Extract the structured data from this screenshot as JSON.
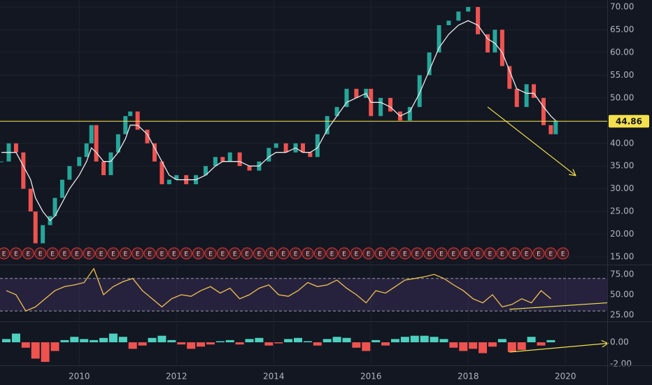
{
  "chart_data": [
    {
      "type": "line",
      "xlim": [
        2008.37,
        2020.86
      ],
      "xticks": [
        2010,
        2012,
        2014,
        2016,
        2018,
        2020
      ],
      "ylim": [
        13.47,
        71.54
      ],
      "yticks": [
        {
          "value": 15,
          "label": "15.00"
        },
        {
          "value": 20,
          "label": "20.00"
        },
        {
          "value": 25,
          "label": "25.00"
        },
        {
          "value": 30,
          "label": "30.00"
        },
        {
          "value": 35,
          "label": "35.00"
        },
        {
          "value": 40,
          "label": "40.00"
        },
        {
          "value": 45,
          "label": "45.00"
        },
        {
          "value": 50,
          "label": "50.00"
        },
        {
          "value": 55,
          "label": "55.00"
        },
        {
          "value": 60,
          "label": "60.00"
        },
        {
          "value": 65,
          "label": "65.00"
        },
        {
          "value": 70,
          "label": "70.00"
        }
      ],
      "grid": true,
      "series": [
        {
          "style": "candles",
          "up_color": "#26a69a",
          "down_color": "#ef5350",
          "x": [
            2008.4,
            2008.55,
            2008.7,
            2008.85,
            2009.0,
            2009.1,
            2009.25,
            2009.4,
            2009.5,
            2009.65,
            2009.8,
            2010.0,
            2010.15,
            2010.25,
            2010.35,
            2010.5,
            2010.65,
            2010.8,
            2010.95,
            2011.05,
            2011.2,
            2011.4,
            2011.55,
            2011.7,
            2011.85,
            2012.0,
            2012.2,
            2012.4,
            2012.6,
            2012.8,
            2012.95,
            2013.1,
            2013.3,
            2013.5,
            2013.7,
            2013.9,
            2014.05,
            2014.25,
            2014.45,
            2014.6,
            2014.75,
            2014.9,
            2015.1,
            2015.3,
            2015.5,
            2015.7,
            2015.9,
            2016.0,
            2016.2,
            2016.4,
            2016.6,
            2016.8,
            2017.0,
            2017.2,
            2017.4,
            2017.6,
            2017.8,
            2018.0,
            2018.2,
            2018.4,
            2018.55,
            2018.7,
            2018.85,
            2019.0,
            2019.2,
            2019.35,
            2019.55,
            2019.7,
            2019.8
          ],
          "values": [
            36,
            40,
            38,
            30,
            25,
            18,
            22,
            24,
            28,
            32,
            35,
            37,
            40,
            44,
            36,
            33,
            38,
            42,
            46,
            47,
            43,
            40,
            36,
            31,
            32,
            33,
            31,
            33,
            35,
            37,
            36,
            38,
            35,
            34,
            36,
            39,
            40,
            38,
            40,
            38,
            37,
            42,
            46,
            48,
            52,
            50,
            52,
            46,
            50,
            47,
            45,
            48,
            55,
            60,
            66,
            67,
            69,
            70,
            64,
            60,
            65,
            57,
            52,
            48,
            53,
            50,
            44,
            42,
            45
          ]
        },
        {
          "style": "line",
          "color": "#e8e8e8",
          "x": [
            2008.4,
            2008.55,
            2008.7,
            2008.85,
            2009.0,
            2009.1,
            2009.25,
            2009.4,
            2009.5,
            2009.65,
            2009.8,
            2010.0,
            2010.15,
            2010.25,
            2010.35,
            2010.5,
            2010.65,
            2010.8,
            2010.95,
            2011.05,
            2011.2,
            2011.4,
            2011.55,
            2011.7,
            2011.85,
            2012.0,
            2012.2,
            2012.4,
            2012.6,
            2012.8,
            2012.95,
            2013.1,
            2013.3,
            2013.5,
            2013.7,
            2013.9,
            2014.05,
            2014.25,
            2014.45,
            2014.6,
            2014.75,
            2014.9,
            2015.1,
            2015.3,
            2015.5,
            2015.7,
            2015.9,
            2016.0,
            2016.2,
            2016.4,
            2016.6,
            2016.8,
            2017.0,
            2017.2,
            2017.4,
            2017.6,
            2017.8,
            2018.0,
            2018.2,
            2018.4,
            2018.55,
            2018.7,
            2018.85,
            2019.0,
            2019.2,
            2019.35,
            2019.55,
            2019.7,
            2019.8
          ],
          "values": [
            38,
            38,
            38,
            35,
            32,
            28,
            25,
            23,
            24,
            27,
            30,
            33,
            36,
            39,
            38,
            36,
            36,
            38,
            41,
            44,
            44,
            42,
            39,
            36,
            33,
            32,
            32,
            32,
            33,
            35,
            36,
            36,
            36,
            35,
            35,
            37,
            38,
            38,
            39,
            38,
            38,
            39,
            43,
            46,
            49,
            50,
            51,
            49,
            49,
            48,
            46,
            47,
            51,
            56,
            61,
            64,
            66,
            67,
            66,
            63,
            62,
            60,
            56,
            52,
            51,
            51,
            48,
            46,
            45
          ]
        }
      ],
      "price_line": {
        "value": 44.86,
        "color": "#f4e04d"
      },
      "trendlines": [
        {
          "x": [
            2018.4,
            2020.2
          ],
          "y": [
            48,
            33
          ],
          "color": "#f4e04d",
          "arrow": true
        }
      ],
      "earnings_label": "E",
      "earnings_x": [
        2008.45,
        2008.7,
        2008.95,
        2009.2,
        2009.45,
        2009.7,
        2009.95,
        2010.2,
        2010.45,
        2010.7,
        2010.95,
        2011.2,
        2011.45,
        2011.7,
        2011.95,
        2012.2,
        2012.45,
        2012.7,
        2012.95,
        2013.2,
        2013.45,
        2013.7,
        2013.95,
        2014.2,
        2014.45,
        2014.7,
        2014.95,
        2015.2,
        2015.45,
        2015.7,
        2015.95,
        2016.2,
        2016.45,
        2016.7,
        2016.95,
        2017.2,
        2017.45,
        2017.7,
        2017.95,
        2018.2,
        2018.45,
        2018.7,
        2018.95,
        2019.2,
        2019.45,
        2019.7,
        2019.95
      ]
    },
    {
      "type": "line",
      "ylim": [
        18.1,
        85.3
      ],
      "yticks": [
        {
          "value": 25,
          "label": "25.00"
        },
        {
          "value": 50,
          "label": "50.00"
        },
        {
          "value": 75,
          "label": "75.00"
        }
      ],
      "band": [
        30,
        70
      ],
      "band_color": "#7e57c2",
      "series": [
        {
          "style": "line",
          "color": "#f2c14e",
          "x": [
            2008.5,
            2008.7,
            2008.9,
            2009.1,
            2009.3,
            2009.5,
            2009.7,
            2009.9,
            2010.1,
            2010.3,
            2010.5,
            2010.7,
            2010.9,
            2011.1,
            2011.3,
            2011.5,
            2011.7,
            2011.9,
            2012.1,
            2012.3,
            2012.5,
            2012.7,
            2012.9,
            2013.1,
            2013.3,
            2013.5,
            2013.7,
            2013.9,
            2014.1,
            2014.3,
            2014.5,
            2014.7,
            2014.9,
            2015.1,
            2015.3,
            2015.5,
            2015.7,
            2015.9,
            2016.1,
            2016.3,
            2016.5,
            2016.7,
            2016.9,
            2017.1,
            2017.3,
            2017.5,
            2017.7,
            2017.9,
            2018.1,
            2018.3,
            2018.5,
            2018.7,
            2018.9,
            2019.1,
            2019.3,
            2019.5,
            2019.7
          ],
          "values": [
            55,
            50,
            30,
            35,
            45,
            55,
            60,
            62,
            65,
            82,
            50,
            60,
            66,
            70,
            55,
            45,
            35,
            45,
            50,
            48,
            55,
            60,
            52,
            58,
            45,
            50,
            58,
            62,
            50,
            48,
            55,
            65,
            60,
            62,
            68,
            58,
            50,
            40,
            55,
            52,
            60,
            68,
            70,
            72,
            75,
            70,
            62,
            55,
            45,
            40,
            50,
            35,
            38,
            45,
            40,
            55,
            45
          ]
        }
      ],
      "trendlines": [
        {
          "x": [
            2018.85,
            2020.86
          ],
          "y": [
            32,
            40
          ],
          "color": "#f4e04d",
          "arrow": false
        }
      ]
    },
    {
      "type": "bar",
      "ylim": [
        -2.06,
        1.8
      ],
      "yticks": [
        {
          "value": 0,
          "label": "0.00"
        },
        {
          "value": -2,
          "label": "-2.00"
        }
      ],
      "pos_color": "#4dd0bf",
      "neg_color": "#ef5350",
      "x": [
        2008.5,
        2008.7,
        2008.9,
        2009.1,
        2009.3,
        2009.5,
        2009.7,
        2009.9,
        2010.1,
        2010.3,
        2010.5,
        2010.7,
        2010.9,
        2011.1,
        2011.3,
        2011.5,
        2011.7,
        2011.9,
        2012.1,
        2012.3,
        2012.5,
        2012.7,
        2012.9,
        2013.1,
        2013.3,
        2013.5,
        2013.7,
        2013.9,
        2014.1,
        2014.3,
        2014.5,
        2014.7,
        2014.9,
        2015.1,
        2015.3,
        2015.5,
        2015.7,
        2015.9,
        2016.1,
        2016.3,
        2016.5,
        2016.7,
        2016.9,
        2017.1,
        2017.3,
        2017.5,
        2017.7,
        2017.9,
        2018.1,
        2018.3,
        2018.5,
        2018.7,
        2018.9,
        2019.1,
        2019.3,
        2019.5,
        2019.7
      ],
      "values": [
        0.3,
        0.8,
        -0.5,
        -1.5,
        -1.8,
        -0.8,
        0.2,
        0.5,
        0.3,
        0.2,
        0.4,
        0.8,
        0.5,
        -0.6,
        -0.3,
        0.4,
        0.6,
        0.2,
        -0.2,
        -0.6,
        -0.4,
        -0.2,
        0.1,
        0.2,
        -0.2,
        0.3,
        0.4,
        -0.3,
        -0.1,
        0.3,
        0.4,
        0.1,
        -0.3,
        0.3,
        0.5,
        0.4,
        -0.5,
        -0.8,
        0.2,
        -0.3,
        0.3,
        0.5,
        0.6,
        0.6,
        0.5,
        0.3,
        -0.5,
        -0.8,
        -0.6,
        -1.0,
        -0.4,
        0.3,
        -0.9,
        -0.7,
        0.5,
        -0.3,
        0.2
      ],
      "trendlines": [
        {
          "x": [
            2018.85,
            2020.86
          ],
          "y": [
            -0.9,
            -0.1
          ],
          "color": "#f4e04d",
          "arrow": true
        }
      ]
    }
  ]
}
